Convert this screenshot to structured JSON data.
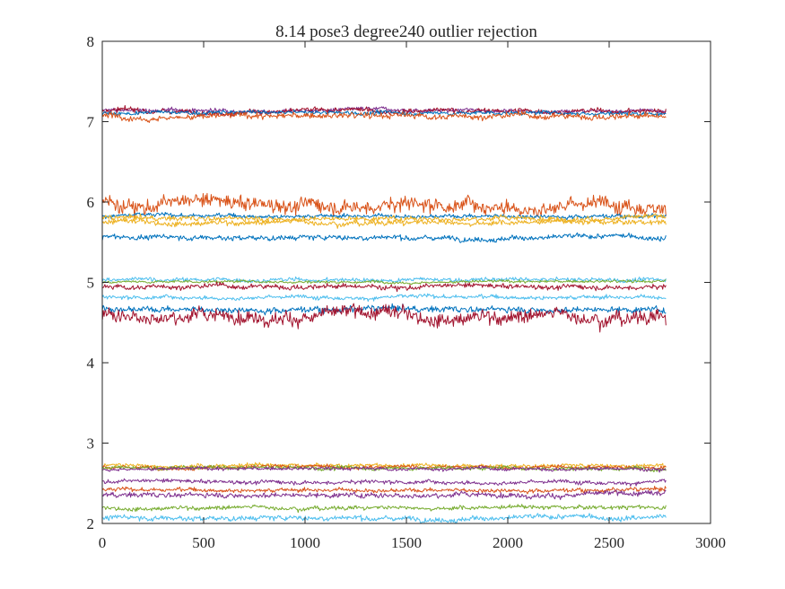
{
  "chart_data": {
    "type": "line",
    "title": "8.14 pose3  degree240 outlier rejection",
    "xlabel": "",
    "ylabel": "",
    "xlim": [
      0,
      3000
    ],
    "ylim": [
      2,
      8
    ],
    "x_ticks": [
      "0",
      "500",
      "1000",
      "1500",
      "2000",
      "2500",
      "3000"
    ],
    "y_ticks": [
      "2",
      "3",
      "4",
      "5",
      "6",
      "7",
      "8"
    ],
    "grid": false,
    "legend": "none",
    "x_range": [
      1,
      2780
    ],
    "series": [
      {
        "level": 7.14,
        "noise": 0.012,
        "color": "#7E2F8E"
      },
      {
        "level": 7.13,
        "noise": 0.015,
        "color": "#A2142F"
      },
      {
        "level": 7.11,
        "noise": 0.012,
        "color": "#0072BD"
      },
      {
        "level": 7.07,
        "noise": 0.018,
        "color": "#D95319"
      },
      {
        "level": 5.98,
        "noise": 0.045,
        "color": "#D95319"
      },
      {
        "level": 5.83,
        "noise": 0.012,
        "color": "#0072BD"
      },
      {
        "level": 5.8,
        "noise": 0.015,
        "color": "#EDB120"
      },
      {
        "level": 5.75,
        "noise": 0.015,
        "color": "#EDB120"
      },
      {
        "level": 5.56,
        "noise": 0.015,
        "color": "#0072BD"
      },
      {
        "level": 5.03,
        "noise": 0.012,
        "color": "#4DBEEE"
      },
      {
        "level": 5.01,
        "noise": 0.008,
        "color": "#77AC30"
      },
      {
        "level": 4.95,
        "noise": 0.015,
        "color": "#A2142F"
      },
      {
        "level": 4.82,
        "noise": 0.012,
        "color": "#4DBEEE"
      },
      {
        "level": 4.67,
        "noise": 0.018,
        "color": "#0072BD"
      },
      {
        "level": 4.59,
        "noise": 0.04,
        "color": "#A2142F"
      },
      {
        "level": 2.72,
        "noise": 0.012,
        "color": "#EDB120"
      },
      {
        "level": 2.7,
        "noise": 0.01,
        "color": "#D95319"
      },
      {
        "level": 2.69,
        "noise": 0.012,
        "color": "#77AC30"
      },
      {
        "level": 2.68,
        "noise": 0.01,
        "color": "#7E2F8E"
      },
      {
        "level": 2.52,
        "noise": 0.012,
        "color": "#7E2F8E"
      },
      {
        "level": 2.42,
        "noise": 0.012,
        "color": "#D95319"
      },
      {
        "level": 2.36,
        "noise": 0.015,
        "color": "#7E2F8E"
      },
      {
        "level": 2.2,
        "noise": 0.012,
        "color": "#77AC30"
      },
      {
        "level": 2.07,
        "noise": 0.015,
        "color": "#4DBEEE"
      }
    ]
  }
}
